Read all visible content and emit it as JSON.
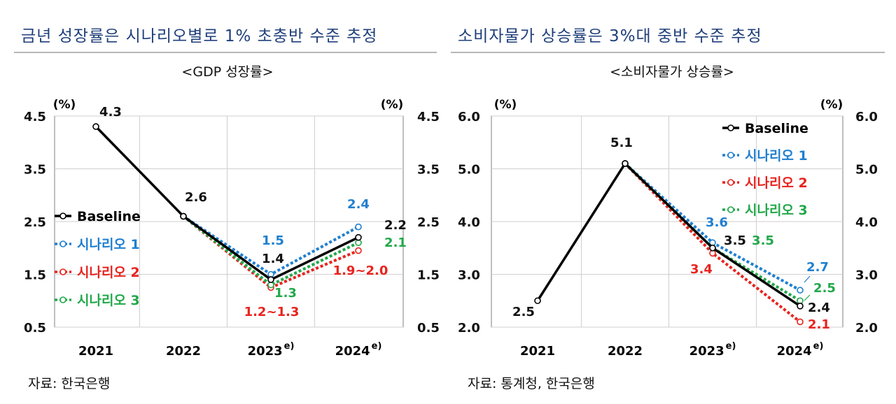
{
  "left": {
    "headline": "금년 성장률은 시나리오별로 1% 초충반 수준 추정",
    "source": "자료: 한국은행",
    "chart_data": {
      "type": "line",
      "title": "<GDP 성장률>",
      "unit_left": "(%)",
      "unit_right": "(%)",
      "categories": [
        "2021",
        "2022",
        "2023",
        "2024"
      ],
      "category_superscripts": [
        "",
        "",
        "e)",
        "e)"
      ],
      "ylim": [
        0.5,
        4.5
      ],
      "yticks": [
        "4.5",
        "3.5",
        "2.5",
        "1.5",
        "0.5"
      ],
      "ytick_values": [
        4.5,
        3.5,
        2.5,
        1.5,
        0.5
      ],
      "grid": true,
      "legend_position": "middle-left",
      "series": [
        {
          "name": "Baseline",
          "color": "#000000",
          "style": "solid",
          "values": [
            4.3,
            2.6,
            1.4,
            2.2
          ]
        },
        {
          "name": "시나리오 1",
          "color": "#1f7fd0",
          "style": "dotted",
          "values": [
            null,
            2.6,
            1.5,
            2.4
          ]
        },
        {
          "name": "시나리오 2",
          "color": "#e8231e",
          "style": "dotted",
          "values": [
            null,
            2.6,
            1.25,
            1.95
          ]
        },
        {
          "name": "시나리오 3",
          "color": "#21a84a",
          "style": "dotted",
          "values": [
            null,
            2.6,
            1.3,
            2.1
          ]
        }
      ],
      "data_labels": [
        {
          "text": "4.3",
          "color": "#111111"
        },
        {
          "text": "2.6",
          "color": "#111111"
        },
        {
          "text": "1.5",
          "color": "#1f7fd0"
        },
        {
          "text": "1.4",
          "color": "#111111"
        },
        {
          "text": "1.3",
          "color": "#21a84a"
        },
        {
          "text": "1.2~1.3",
          "color": "#e8231e"
        },
        {
          "text": "2.4",
          "color": "#1f7fd0"
        },
        {
          "text": "2.2",
          "color": "#111111"
        },
        {
          "text": "2.1",
          "color": "#21a84a"
        },
        {
          "text": "1.9~2.0",
          "color": "#e8231e"
        }
      ]
    }
  },
  "right": {
    "headline": "소비자물가 상승률은 3%대 중반 수준 추정",
    "source": "자료: 통계청, 한국은행",
    "chart_data": {
      "type": "line",
      "title": "<소비자물가 상승률>",
      "unit_left": "(%)",
      "unit_right": "(%)",
      "categories": [
        "2021",
        "2022",
        "2023",
        "2024"
      ],
      "category_superscripts": [
        "",
        "",
        "e)",
        "e)"
      ],
      "ylim": [
        2.0,
        6.0
      ],
      "yticks": [
        "6.0",
        "5.0",
        "4.0",
        "3.0",
        "2.0"
      ],
      "ytick_values": [
        6.0,
        5.0,
        4.0,
        3.0,
        2.0
      ],
      "grid": true,
      "legend_position": "top-right",
      "series": [
        {
          "name": "Baseline",
          "color": "#000000",
          "style": "solid",
          "values": [
            2.5,
            5.1,
            3.5,
            2.4
          ]
        },
        {
          "name": "시나리오 1",
          "color": "#1f7fd0",
          "style": "dotted",
          "values": [
            null,
            5.1,
            3.6,
            2.7
          ]
        },
        {
          "name": "시나리오 2",
          "color": "#e8231e",
          "style": "dotted",
          "values": [
            null,
            5.1,
            3.4,
            2.1
          ]
        },
        {
          "name": "시나리오 3",
          "color": "#21a84a",
          "style": "dotted",
          "values": [
            null,
            5.1,
            3.5,
            2.5
          ]
        }
      ],
      "data_labels": [
        {
          "text": "2.5",
          "color": "#111111"
        },
        {
          "text": "5.1",
          "color": "#111111"
        },
        {
          "text": "3.6",
          "color": "#1f7fd0"
        },
        {
          "text": "3.5",
          "color": "#111111"
        },
        {
          "text": "3.5",
          "color": "#21a84a"
        },
        {
          "text": "3.4",
          "color": "#e8231e"
        },
        {
          "text": "2.7",
          "color": "#1f7fd0"
        },
        {
          "text": "2.5",
          "color": "#21a84a"
        },
        {
          "text": "2.4",
          "color": "#111111"
        },
        {
          "text": "2.1",
          "color": "#e8231e"
        }
      ]
    }
  }
}
